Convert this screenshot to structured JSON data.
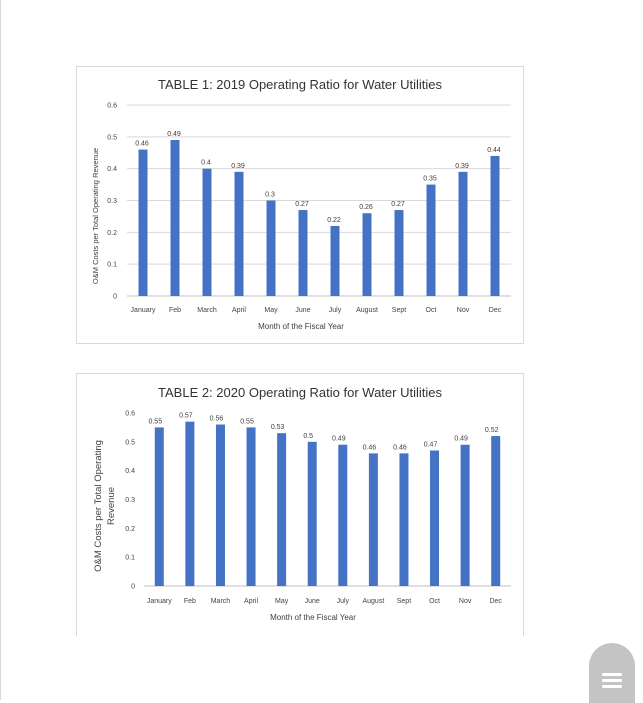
{
  "chart_data": [
    {
      "type": "bar",
      "title": "TABLE 1: 2019 Operating Ratio for Water Utilities",
      "xlabel": "Month of the Fiscal Year",
      "ylabel": "O&M Costs per Total Operating Revenue",
      "categories": [
        "January",
        "Feb",
        "March",
        "April",
        "May",
        "June",
        "July",
        "August",
        "Sept",
        "Oct",
        "Nov",
        "Dec"
      ],
      "values": [
        0.46,
        0.49,
        0.4,
        0.39,
        0.3,
        0.27,
        0.22,
        0.26,
        0.27,
        0.35,
        0.39,
        0.44
      ],
      "value_labels": [
        "0.46",
        "0.49",
        "0.4",
        "0.39",
        "0.3",
        "0.27",
        "0.22",
        "0.26",
        "0.27",
        "0.35",
        "0.39",
        "0.44"
      ],
      "yticks": [
        "0",
        "0.1",
        "0.2",
        "0.3",
        "0.4",
        "0.5",
        "0.6"
      ],
      "ylim": [
        0,
        0.6
      ],
      "grid": true,
      "color": "#4472c4"
    },
    {
      "type": "bar",
      "title": "TABLE 2: 2020 Operating Ratio for Water Utilities",
      "xlabel": "Month of the Fiscal Year",
      "ylabel_lines": [
        "O&M Costs per Total Operating",
        "Revenue"
      ],
      "categories": [
        "January",
        "Feb",
        "March",
        "April",
        "May",
        "June",
        "July",
        "August",
        "Sept",
        "Oct",
        "Nov",
        "Dec"
      ],
      "values": [
        0.55,
        0.57,
        0.56,
        0.55,
        0.53,
        0.5,
        0.49,
        0.46,
        0.46,
        0.47,
        0.49,
        0.52
      ],
      "value_labels": [
        "0.55",
        "0.57",
        "0.56",
        "0.55",
        "0.53",
        "0.5",
        "0.49",
        "0.46",
        "0.46",
        "0.47",
        "0.49",
        "0.52"
      ],
      "yticks": [
        "0",
        "0.1",
        "0.2",
        "0.3",
        "0.4",
        "0.5",
        "0.6"
      ],
      "ylim": [
        0,
        0.6
      ],
      "grid": false,
      "color": "#4472c4"
    }
  ]
}
